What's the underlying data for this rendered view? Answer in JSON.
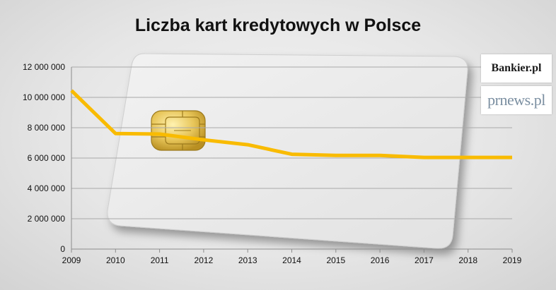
{
  "chart_data": {
    "type": "line",
    "title": "Liczba kart kredytowych w Polsce",
    "x": [
      "2009",
      "2010",
      "2011",
      "2012",
      "2013",
      "2014",
      "2015",
      "2016",
      "2017",
      "2018",
      "2019"
    ],
    "series": [
      {
        "values": [
          10450000,
          7620000,
          7580000,
          7200000,
          6880000,
          6250000,
          6170000,
          6170000,
          6040000,
          6040000,
          6040000
        ]
      }
    ],
    "y_ticks": [
      "0",
      "2 000 000",
      "4 000 000",
      "6 000 000",
      "8 000 000",
      "10 000 000",
      "12 000 000"
    ],
    "ylim": [
      0,
      12000000
    ],
    "grid": true,
    "line_color": "#f9bb00",
    "gridline_color": "#a9a9a9"
  },
  "logos": {
    "bankier": "Bankier.pl",
    "prnews": "prnews.pl"
  }
}
